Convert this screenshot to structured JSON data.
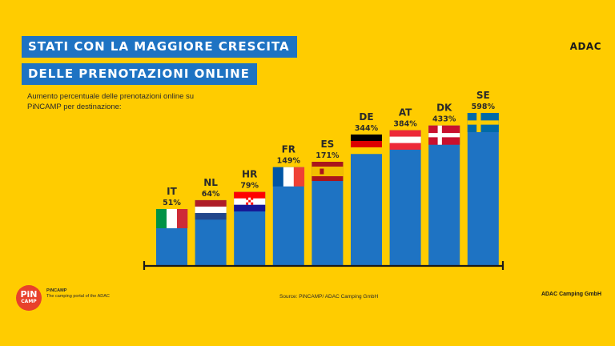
{
  "title": {
    "line1": "STATI CON LA MAGGIORE CRESCITA",
    "line2": "DELLE PRENOTAZIONI ONLINE"
  },
  "subtitle": "Aumento percentuale delle prenotazioni online su PiNCAMP per destinazione:",
  "brand": {
    "adac_logo": "ADAC",
    "pincamp_badge_top": "PiN",
    "pincamp_badge_bottom": "CAMP",
    "pincamp_name": "PiNCAMP",
    "pincamp_tagline": "The camping portal of the ADAC"
  },
  "source": "Source: PiNCAMP/ ADAC Camping GmbH",
  "footer_right": "ADAC Camping GmbH",
  "colors": {
    "background": "#FFCC00",
    "bar": "#1E73C3",
    "title_bg": "#1E73C3"
  },
  "chart_data": {
    "type": "bar",
    "categories": [
      "IT",
      "NL",
      "HR",
      "FR",
      "ES",
      "DE",
      "AT",
      "DK",
      "SE"
    ],
    "values": [
      51,
      64,
      79,
      149,
      171,
      344,
      384,
      433,
      598
    ],
    "value_labels": [
      "51%",
      "64%",
      "79%",
      "149%",
      "171%",
      "344%",
      "384%",
      "433%",
      "598%"
    ],
    "flags": [
      "italy-flag",
      "netherlands-flag",
      "croatia-flag",
      "france-flag",
      "spain-flag",
      "germany-flag",
      "austria-flag",
      "denmark-flag",
      "sweden-flag"
    ],
    "title": "STATI CON LA MAGGIORE CRESCITA DELLE PRENOTAZIONI ONLINE",
    "xlabel": "",
    "ylabel": "",
    "grid": false,
    "legend": "none"
  }
}
